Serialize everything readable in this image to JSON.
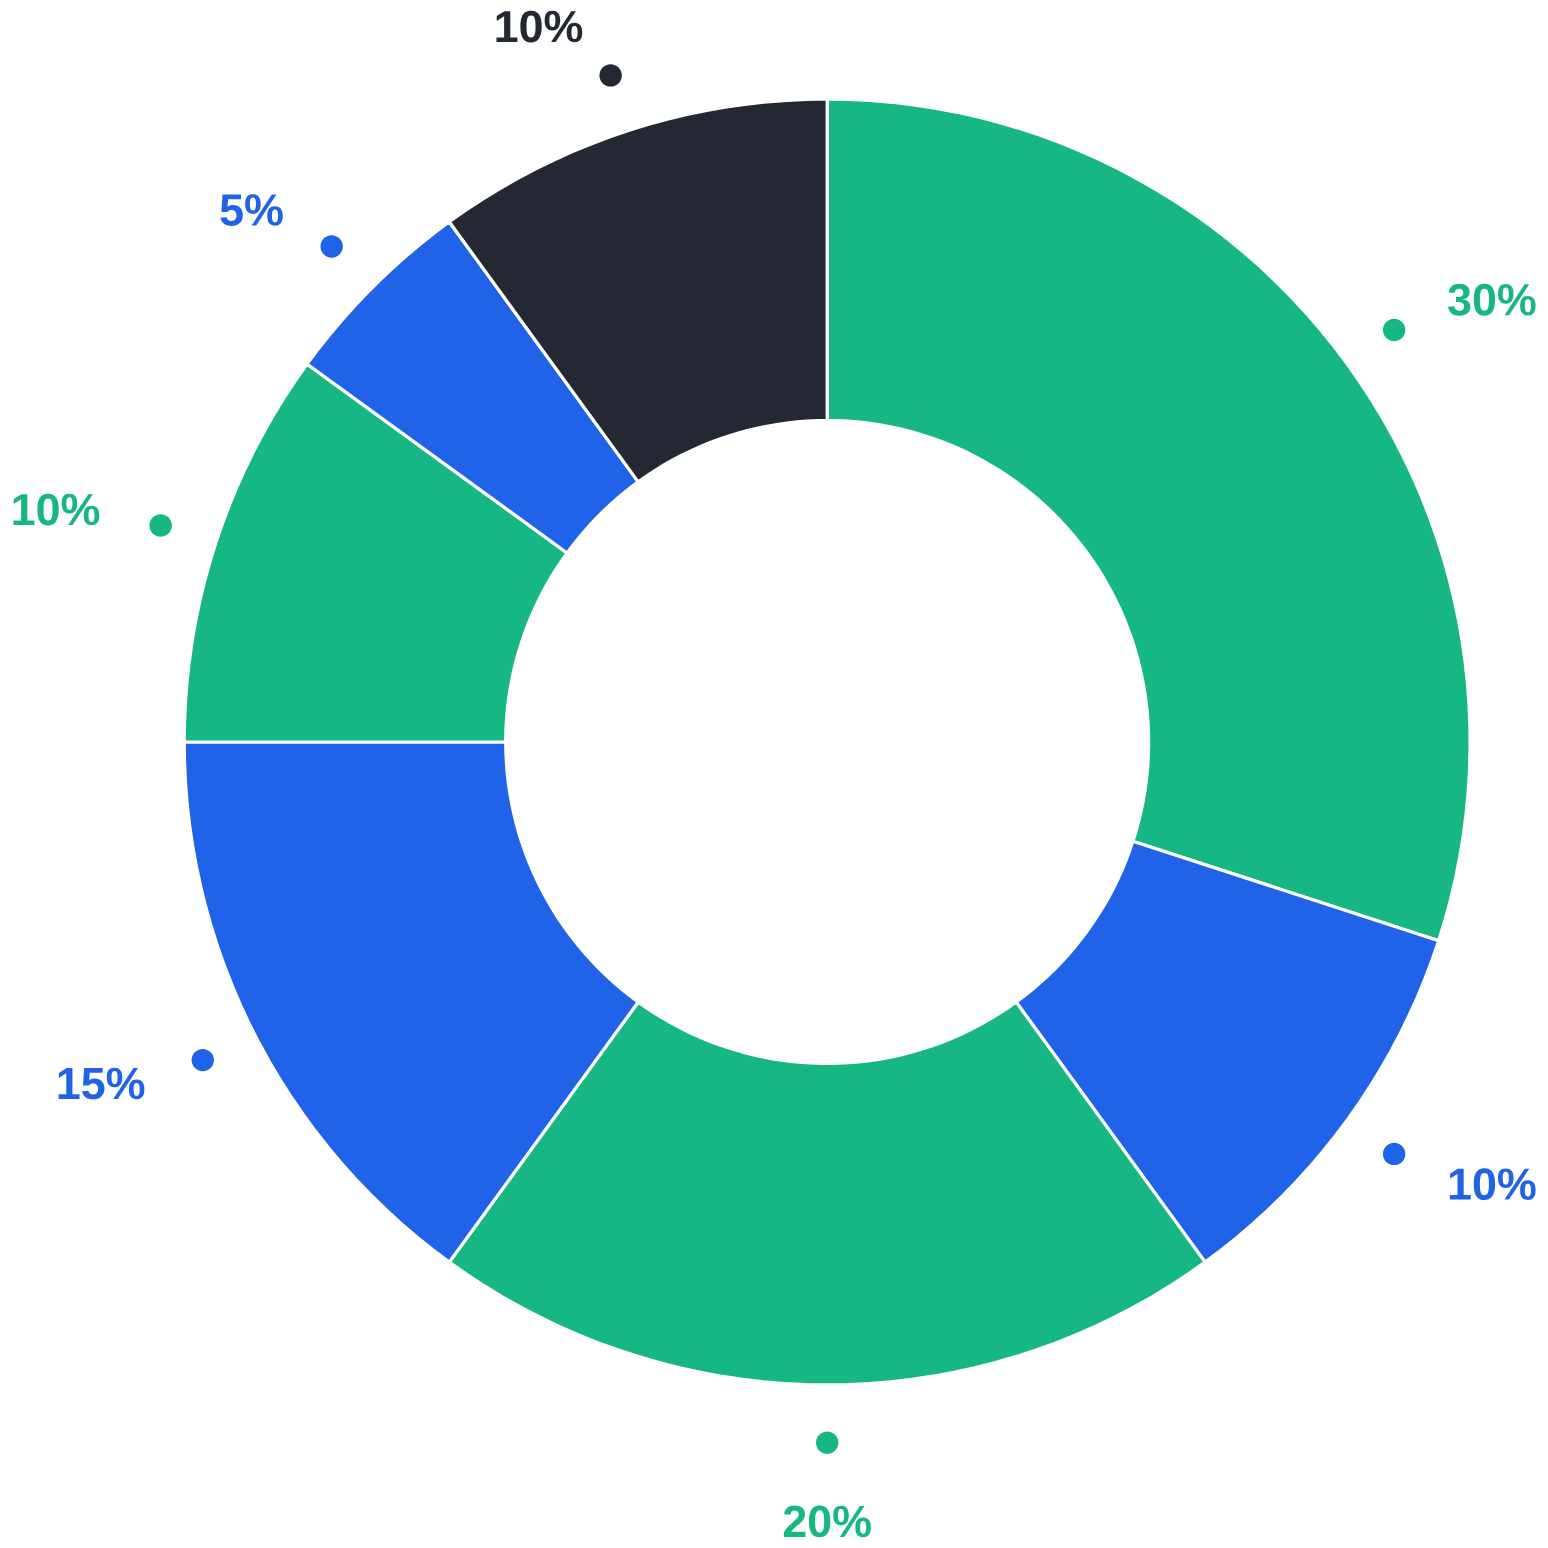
{
  "chart_data": {
    "type": "donut",
    "categories": [
      null,
      null,
      null,
      null,
      null,
      null,
      null
    ],
    "values": [
      30,
      10,
      20,
      15,
      10,
      5,
      10
    ],
    "value_labels": [
      "30%",
      "10%",
      "20%",
      "15%",
      "10%",
      "5%",
      "10%"
    ],
    "colors": [
      "#16b784",
      "#2163e8",
      "#16b784",
      "#2163e8",
      "#16b784",
      "#2163e8",
      "#232833"
    ]
  }
}
